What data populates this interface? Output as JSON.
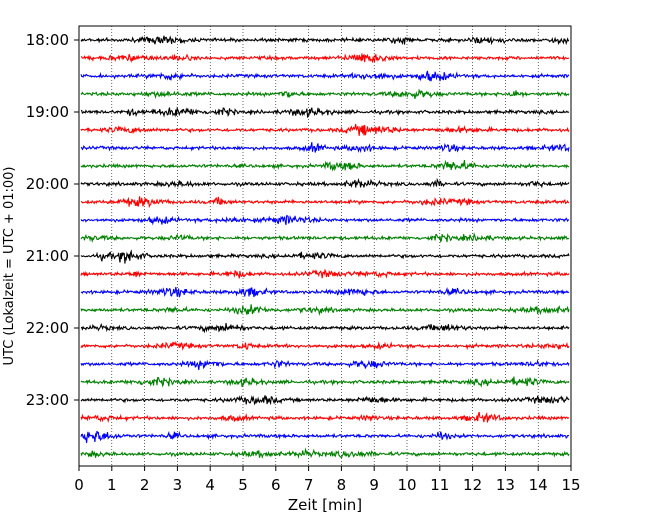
{
  "chart_data": {
    "type": "line",
    "title": "",
    "xlabel": "Zeit  [min]",
    "ylabel": "UTC (Lokalzeit = UTC + 01:00)",
    "xlim": [
      0,
      15
    ],
    "x_ticks": [
      0,
      1,
      2,
      3,
      4,
      5,
      6,
      7,
      8,
      9,
      10,
      11,
      12,
      13,
      14,
      15
    ],
    "y_tick_labels": [
      "18:00",
      "19:00",
      "20:00",
      "21:00",
      "22:00",
      "23:00"
    ],
    "trace_interval_min": 15,
    "trace_start": "18:00",
    "trace_count": 24,
    "color_cycle": [
      "#000000",
      "#ff0000",
      "#0000ff",
      "#008000"
    ],
    "grid": "vertical dotted at each minute",
    "series": "seismogram helicorder traces (background noise)"
  }
}
